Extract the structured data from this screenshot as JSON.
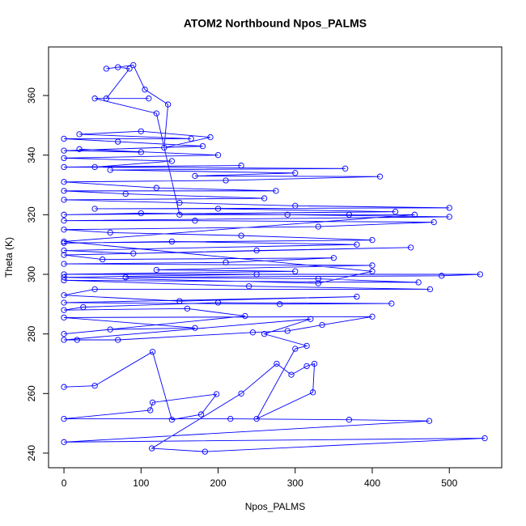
{
  "chart_data": {
    "type": "line",
    "marker": "circle",
    "color": "#0000ff",
    "title": "ATOM2 Northbound Npos_PALMS",
    "xlabel": "Npos_PALMS",
    "ylabel": "Theta (K)",
    "xlim": [
      -20,
      568
    ],
    "ylim": [
      235.1,
      376.3
    ],
    "xticks": [
      0,
      100,
      200,
      300,
      400,
      500
    ],
    "yticks": [
      240,
      260,
      280,
      300,
      320,
      340,
      360
    ],
    "x": [
      0,
      40,
      115,
      140,
      178,
      198,
      115,
      112,
      0,
      216,
      370,
      474,
      0,
      546,
      183,
      114,
      230,
      276,
      295,
      315,
      325,
      323,
      250,
      300,
      315,
      260,
      320,
      0,
      17,
      70,
      245,
      290,
      335,
      400,
      0,
      170,
      60,
      0,
      235,
      160,
      0,
      25,
      200,
      425,
      280,
      0,
      380,
      150,
      0,
      40,
      475,
      240,
      0,
      460,
      330,
      80,
      490,
      540,
      0,
      300,
      120,
      400,
      0,
      210,
      350,
      50,
      0,
      450,
      250,
      90,
      0,
      380,
      140,
      0,
      400,
      230,
      60,
      0,
      330,
      480,
      170,
      0,
      500,
      290,
      100,
      0,
      430,
      200,
      40,
      500,
      300,
      150,
      0,
      260,
      80,
      0,
      275,
      120,
      0,
      210,
      410,
      170,
      300,
      60,
      365,
      0,
      230,
      40,
      140,
      0,
      200,
      20,
      100,
      0,
      180,
      70,
      0,
      165,
      20,
      100,
      190,
      130,
      135,
      105,
      90,
      55,
      70,
      85,
      55,
      110,
      40,
      120,
      150,
      370,
      455,
      0,
      400,
      330,
      0,
      250
    ],
    "values": [
      262.2,
      262.6,
      274,
      251.2,
      253,
      259.8,
      257,
      254.4,
      251.5,
      251.5,
      251.2,
      250.8,
      243.7,
      245,
      240.5,
      241.6,
      260,
      270,
      266.3,
      269.2,
      270,
      260.4,
      251.5,
      275,
      276,
      280,
      285,
      278,
      278,
      278,
      280.5,
      281,
      283,
      285.8,
      285.5,
      282,
      281.5,
      280,
      286,
      288.5,
      288,
      289,
      290.5,
      290.2,
      290,
      290.5,
      292.5,
      291,
      293,
      295,
      295,
      296,
      298,
      297.3,
      298.5,
      299,
      299.5,
      300,
      300,
      301,
      301.5,
      303,
      303.5,
      304,
      305.5,
      305,
      306.5,
      309,
      308,
      307,
      308,
      310,
      311,
      310.5,
      311.5,
      313,
      314,
      315,
      316,
      317.5,
      318,
      318,
      319.3,
      320,
      320.5,
      320,
      321,
      322,
      322,
      322.3,
      323,
      324,
      325,
      325.5,
      327,
      328,
      328,
      329,
      331,
      331.5,
      332.8,
      333,
      334,
      335,
      335.5,
      336,
      336.5,
      336,
      338,
      339,
      340,
      342,
      341,
      341.5,
      343,
      344.5,
      345.5,
      345.5,
      347,
      348,
      346,
      342.5,
      357,
      362,
      370.2,
      369,
      369.5,
      369,
      359,
      359,
      359,
      354,
      320,
      320,
      320,
      311,
      301,
      297,
      299,
      300
    ]
  }
}
